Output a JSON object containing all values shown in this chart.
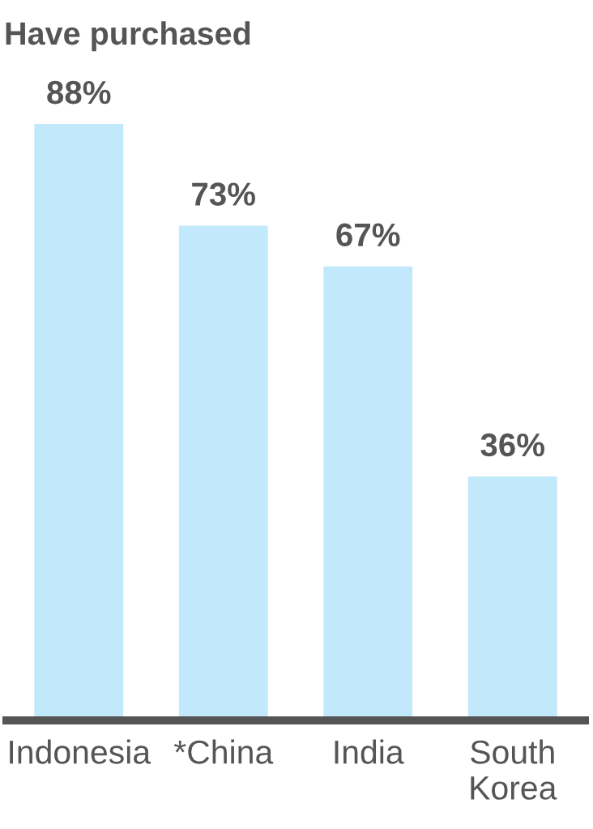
{
  "chart_data": {
    "type": "bar",
    "title": "Have purchased",
    "categories": [
      "Indonesia",
      "*China",
      "India",
      "South\nKorea"
    ],
    "values": [
      88,
      73,
      67,
      36
    ],
    "value_labels": [
      "88%",
      "73%",
      "67%",
      "36%"
    ],
    "color": "#c2e8fb"
  }
}
